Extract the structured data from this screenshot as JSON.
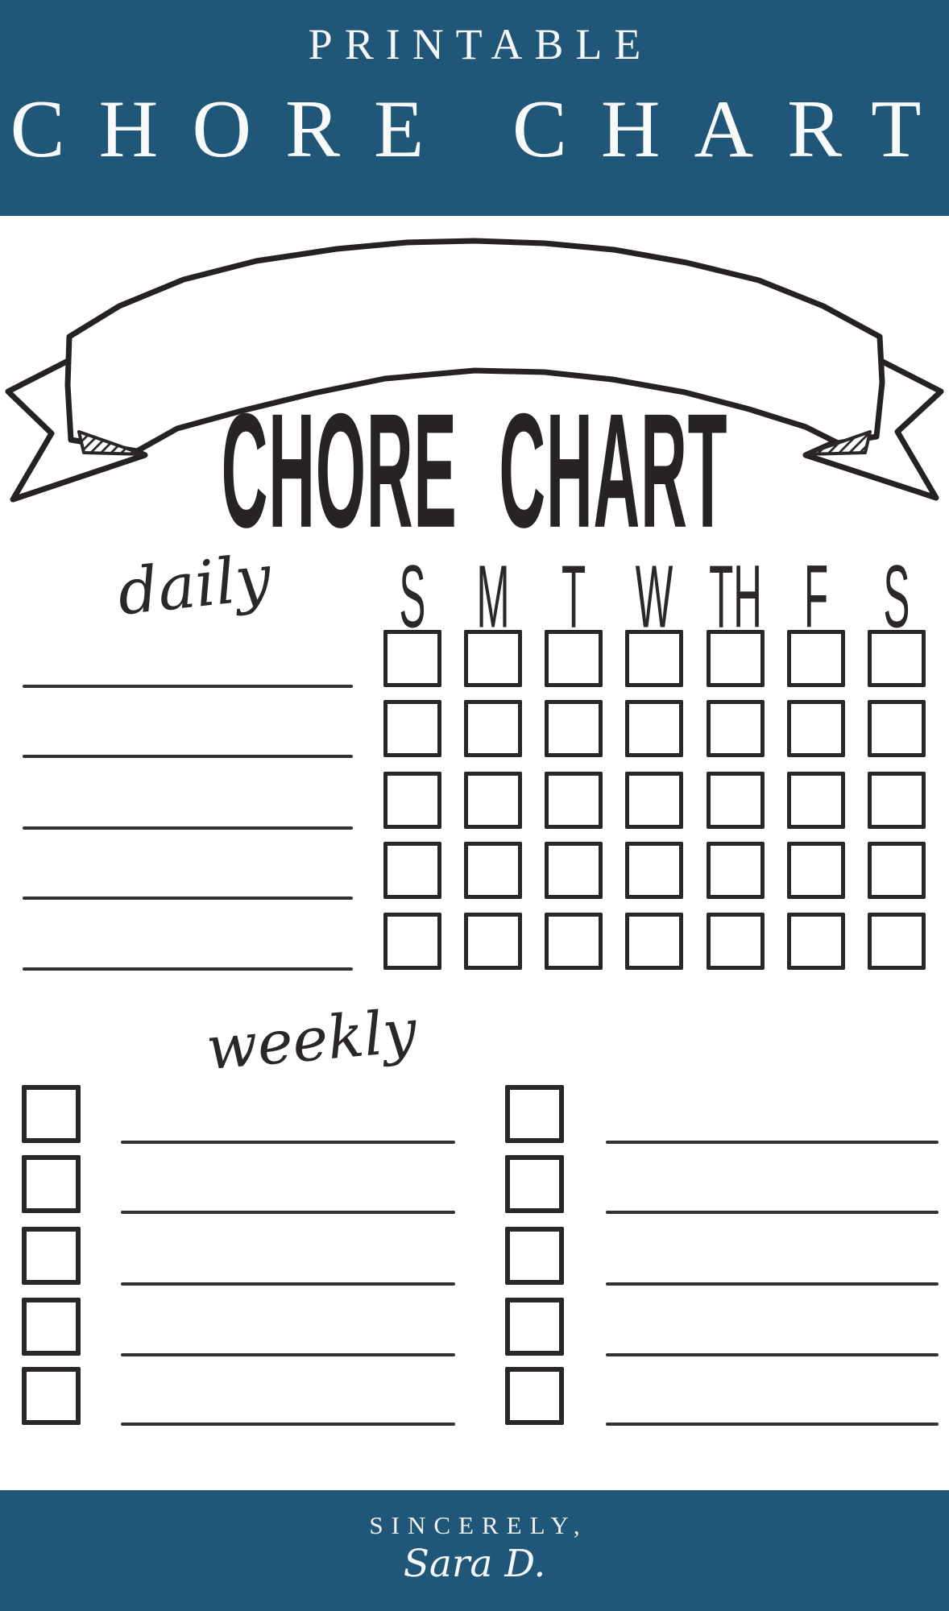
{
  "colors": {
    "blue": "#205677",
    "ink": "#2b2728",
    "paper": "#fefefe"
  },
  "header": {
    "eyebrow": "PRINTABLE",
    "title": "CHORE CHART"
  },
  "banner": {
    "title": "CHORE CHART",
    "ribbon_icon": "hand-drawn-arched-ribbon"
  },
  "daily": {
    "label": "daily",
    "day_headers": [
      "S",
      "M",
      "T",
      "W",
      "TH",
      "F",
      "S"
    ],
    "rows": 5,
    "columns": 7
  },
  "weekly": {
    "label": "weekly",
    "columns": 2,
    "rows_per_column": 5
  },
  "footer": {
    "closing": "SINCERELY,",
    "signature": "Sara D."
  }
}
